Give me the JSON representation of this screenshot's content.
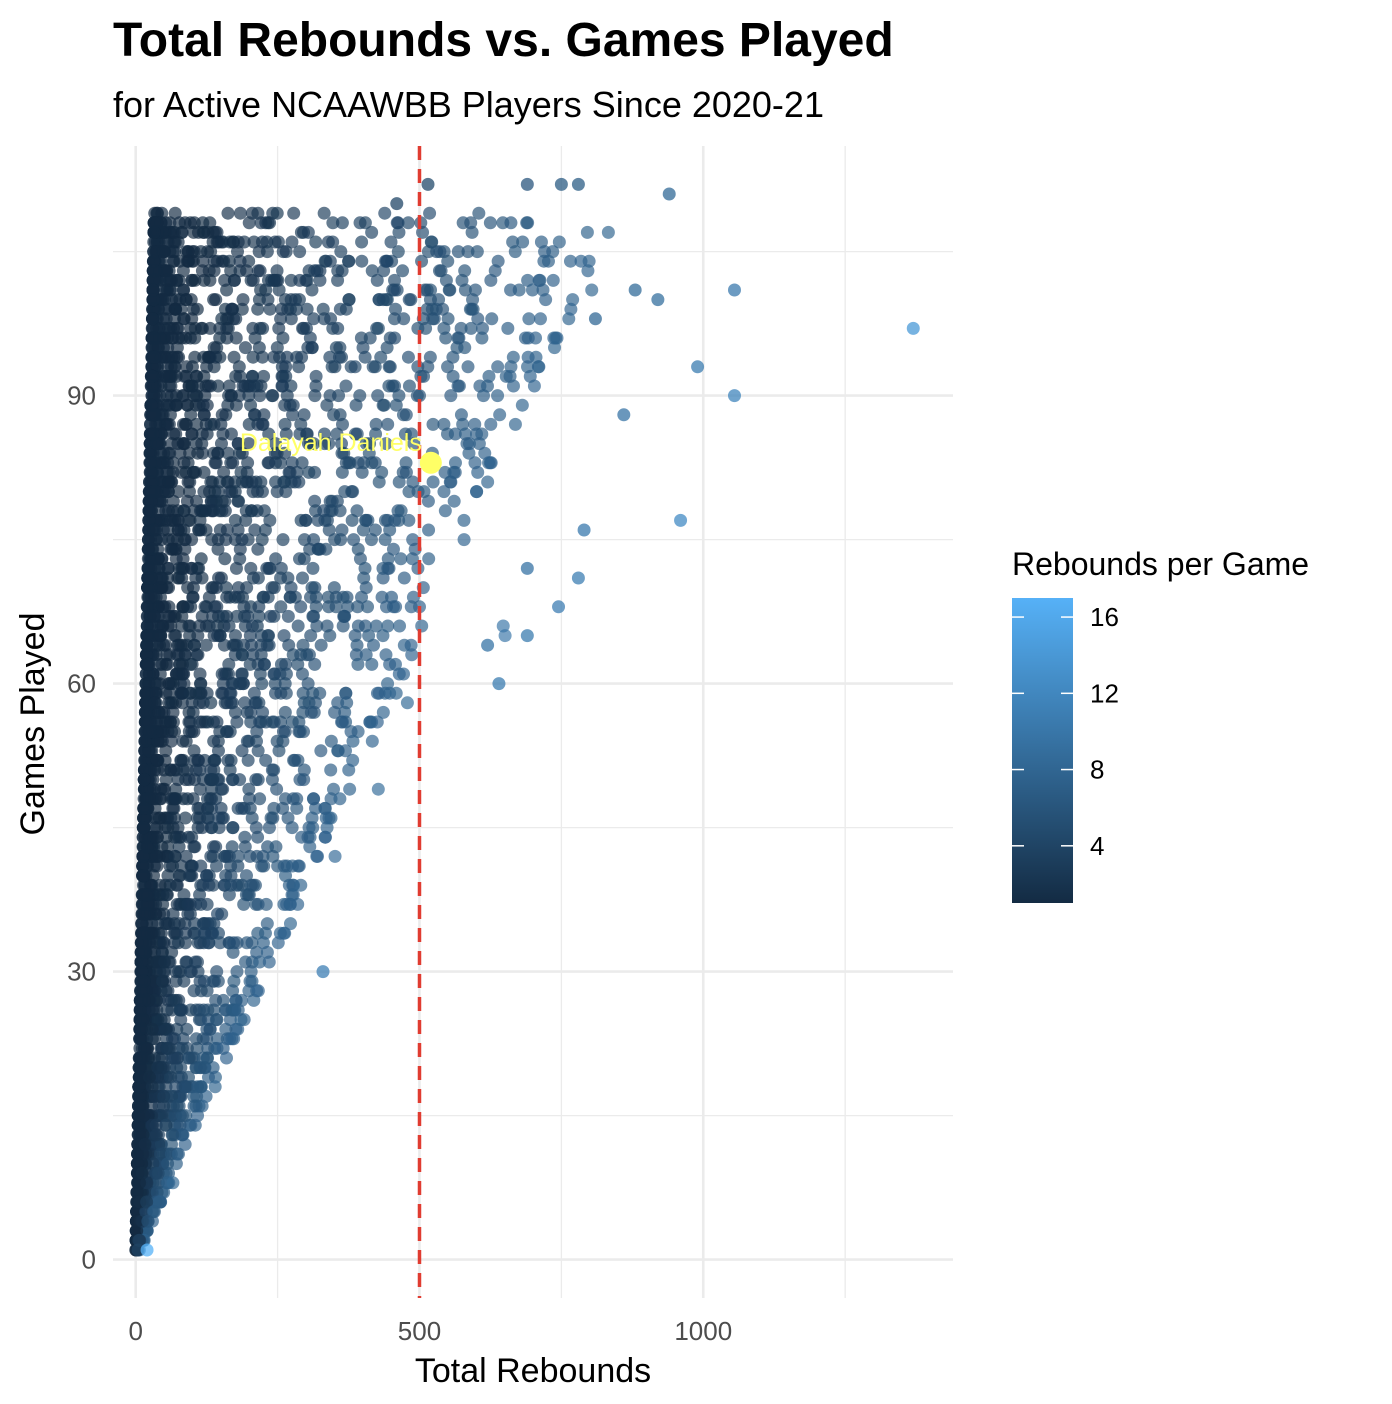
{
  "chart_data": {
    "type": "scatter",
    "title": "Total Rebounds vs. Games Played",
    "subtitle": "for Active NCAAWBB Players Since 2020-21",
    "xlabel": "Total Rebounds",
    "ylabel": "Games Played",
    "xlim": [
      -40,
      1440
    ],
    "ylim": [
      -4,
      116
    ],
    "x_ticks": [
      0,
      500,
      1000
    ],
    "y_ticks": [
      0,
      30,
      60,
      90
    ],
    "grid": true,
    "reference_line": {
      "axis": "x",
      "value": 500,
      "style": "dashed",
      "color": "#e03c31"
    },
    "highlight": {
      "label": "Dalayah Daniels",
      "x": 520,
      "y": 83,
      "color": "#ffff66"
    },
    "color_scale": {
      "title": "Rebounds per Game",
      "min": 1,
      "max": 17,
      "ticks": [
        4,
        8,
        12,
        16
      ],
      "low_color": "#132b43",
      "high_color": "#56b1f7",
      "legend_position": "right"
    },
    "notable_points": [
      {
        "x": 1370,
        "y": 97
      },
      {
        "x": 1055,
        "y": 101
      },
      {
        "x": 1055,
        "y": 90
      },
      {
        "x": 990,
        "y": 93
      },
      {
        "x": 960,
        "y": 77
      },
      {
        "x": 940,
        "y": 111
      },
      {
        "x": 920,
        "y": 100
      },
      {
        "x": 880,
        "y": 101
      },
      {
        "x": 860,
        "y": 88
      },
      {
        "x": 810,
        "y": 98
      },
      {
        "x": 790,
        "y": 76
      },
      {
        "x": 780,
        "y": 71
      },
      {
        "x": 780,
        "y": 112
      },
      {
        "x": 750,
        "y": 112
      },
      {
        "x": 745,
        "y": 68
      },
      {
        "x": 690,
        "y": 112
      },
      {
        "x": 690,
        "y": 65
      },
      {
        "x": 690,
        "y": 72
      },
      {
        "x": 640,
        "y": 60
      },
      {
        "x": 620,
        "y": 64
      },
      {
        "x": 515,
        "y": 112
      },
      {
        "x": 460,
        "y": 110
      },
      {
        "x": 330,
        "y": 30
      },
      {
        "x": 20,
        "y": 1
      }
    ]
  }
}
